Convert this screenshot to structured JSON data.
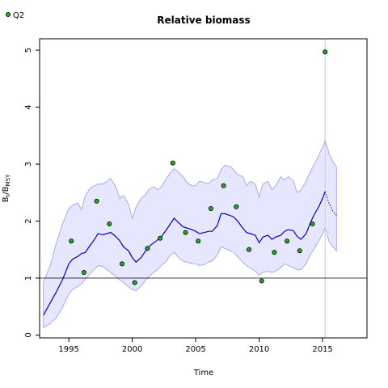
{
  "chart_data": {
    "type": "line",
    "title": "Relative biomass",
    "xlabel": "Time",
    "ylabel_main": "B",
    "ylabel_sub1": "t",
    "ylabel_sep": "/B",
    "ylabel_sub2": "MSY",
    "xlim": [
      1992.7,
      2018.5
    ],
    "ylim": [
      -0.05,
      5.2
    ],
    "x_ticks": [
      1995,
      2000,
      2005,
      2010,
      2015
    ],
    "y_ticks": [
      0,
      1,
      2,
      3,
      4,
      5
    ],
    "reference_hline": 1,
    "reference_vline": 2015.2,
    "legend": {
      "position": "top-left",
      "entries": [
        "Q2"
      ]
    },
    "colors": {
      "line": "#0000cc",
      "band_fill": "#e6e6ff",
      "band_edge": "#9a9aee",
      "points": "#22aa22",
      "vline": "#c8c8dd",
      "hline": "#000000"
    },
    "estimate": {
      "x": [
        1993.0,
        1993.5,
        1994.0,
        1994.5,
        1995.0,
        1995.3,
        1995.7,
        1996.0,
        1996.3,
        1996.7,
        1997.0,
        1997.3,
        1997.7,
        1998.0,
        1998.3,
        1998.7,
        1999.0,
        1999.3,
        1999.7,
        2000.0,
        2000.3,
        2000.7,
        2001.0,
        2001.3,
        2001.7,
        2002.0,
        2002.3,
        2002.7,
        2003.0,
        2003.3,
        2003.7,
        2004.0,
        2004.3,
        2004.7,
        2005.0,
        2005.3,
        2005.7,
        2006.0,
        2006.3,
        2006.7,
        2007.0,
        2007.3,
        2007.7,
        2008.0,
        2008.3,
        2008.7,
        2009.0,
        2009.3,
        2009.7,
        2010.0,
        2010.3,
        2010.7,
        2011.0,
        2011.3,
        2011.7,
        2012.0,
        2012.3,
        2012.7,
        2013.0,
        2013.3,
        2013.7,
        2014.0,
        2014.3,
        2014.7,
        2015.0,
        2015.2
      ],
      "y": [
        0.35,
        0.55,
        0.75,
        0.97,
        1.25,
        1.33,
        1.38,
        1.43,
        1.45,
        1.58,
        1.67,
        1.78,
        1.76,
        1.78,
        1.8,
        1.73,
        1.66,
        1.55,
        1.48,
        1.36,
        1.28,
        1.36,
        1.46,
        1.55,
        1.62,
        1.67,
        1.73,
        1.85,
        1.95,
        2.05,
        1.96,
        1.9,
        1.88,
        1.85,
        1.82,
        1.78,
        1.8,
        1.82,
        1.82,
        1.92,
        2.13,
        2.13,
        2.1,
        2.07,
        2.0,
        1.88,
        1.8,
        1.78,
        1.75,
        1.62,
        1.72,
        1.75,
        1.68,
        1.72,
        1.75,
        1.82,
        1.85,
        1.83,
        1.73,
        1.68,
        1.78,
        1.95,
        2.1,
        2.25,
        2.4,
        2.52
      ]
    },
    "forecast": {
      "x": [
        2015.2,
        2015.5,
        2015.8,
        2016.1
      ],
      "y": [
        2.52,
        2.32,
        2.18,
        2.1
      ]
    },
    "upper_band": {
      "x": [
        1993.0,
        1993.5,
        1994.0,
        1994.5,
        1995.0,
        1995.3,
        1995.7,
        1996.0,
        1996.3,
        1996.7,
        1997.0,
        1997.3,
        1997.7,
        1998.0,
        1998.3,
        1998.7,
        1999.0,
        1999.3,
        1999.7,
        2000.0,
        2000.3,
        2000.7,
        2001.0,
        2001.3,
        2001.7,
        2002.0,
        2002.3,
        2002.7,
        2003.0,
        2003.3,
        2003.7,
        2004.0,
        2004.3,
        2004.7,
        2005.0,
        2005.3,
        2005.7,
        2006.0,
        2006.3,
        2006.7,
        2007.0,
        2007.3,
        2007.7,
        2008.0,
        2008.3,
        2008.7,
        2009.0,
        2009.3,
        2009.7,
        2010.0,
        2010.3,
        2010.7,
        2011.0,
        2011.3,
        2011.7,
        2012.0,
        2012.3,
        2012.7,
        2013.0,
        2013.3,
        2013.7,
        2014.0,
        2014.3,
        2014.7,
        2015.0,
        2015.2,
        2015.5,
        2015.8,
        2016.1
      ],
      "y": [
        0.92,
        1.2,
        1.6,
        1.95,
        2.22,
        2.28,
        2.32,
        2.2,
        2.45,
        2.58,
        2.62,
        2.65,
        2.65,
        2.7,
        2.75,
        2.6,
        2.4,
        2.45,
        2.3,
        2.05,
        2.25,
        2.4,
        2.45,
        2.55,
        2.6,
        2.55,
        2.6,
        2.75,
        2.85,
        2.92,
        2.85,
        2.78,
        2.68,
        2.62,
        2.62,
        2.7,
        2.68,
        2.65,
        2.72,
        2.75,
        2.9,
        2.98,
        2.96,
        2.9,
        2.82,
        2.78,
        2.62,
        2.7,
        2.65,
        2.42,
        2.65,
        2.7,
        2.55,
        2.62,
        2.78,
        2.72,
        2.78,
        2.7,
        2.5,
        2.55,
        2.7,
        2.85,
        2.98,
        3.15,
        3.3,
        3.42,
        3.2,
        3.05,
        2.95
      ]
    },
    "lower_band": {
      "x": [
        1993.0,
        1993.5,
        1994.0,
        1994.5,
        1995.0,
        1995.3,
        1995.7,
        1996.0,
        1996.3,
        1996.7,
        1997.0,
        1997.3,
        1997.7,
        1998.0,
        1998.3,
        1998.7,
        1999.0,
        1999.3,
        1999.7,
        2000.0,
        2000.3,
        2000.7,
        2001.0,
        2001.3,
        2001.7,
        2002.0,
        2002.3,
        2002.7,
        2003.0,
        2003.3,
        2003.7,
        2004.0,
        2004.3,
        2004.7,
        2005.0,
        2005.3,
        2005.7,
        2006.0,
        2006.3,
        2006.7,
        2007.0,
        2007.3,
        2007.7,
        2008.0,
        2008.3,
        2008.7,
        2009.0,
        2009.3,
        2009.7,
        2010.0,
        2010.3,
        2010.7,
        2011.0,
        2011.3,
        2011.7,
        2012.0,
        2012.3,
        2012.7,
        2013.0,
        2013.3,
        2013.7,
        2014.0,
        2014.3,
        2014.7,
        2015.0,
        2015.2,
        2015.5,
        2015.8,
        2016.1
      ],
      "y": [
        0.13,
        0.2,
        0.3,
        0.48,
        0.72,
        0.8,
        0.85,
        0.9,
        0.98,
        1.08,
        1.15,
        1.22,
        1.2,
        1.15,
        1.1,
        1.03,
        0.97,
        0.92,
        0.85,
        0.8,
        0.78,
        0.86,
        0.95,
        1.02,
        1.1,
        1.15,
        1.22,
        1.3,
        1.4,
        1.45,
        1.35,
        1.3,
        1.28,
        1.25,
        1.25,
        1.22,
        1.24,
        1.28,
        1.3,
        1.4,
        1.55,
        1.52,
        1.48,
        1.45,
        1.38,
        1.28,
        1.22,
        1.18,
        1.12,
        1.05,
        1.1,
        1.12,
        1.1,
        1.12,
        1.18,
        1.25,
        1.22,
        1.18,
        1.15,
        1.15,
        1.25,
        1.4,
        1.5,
        1.65,
        1.78,
        1.88,
        1.65,
        1.55,
        1.48
      ]
    },
    "series": [
      {
        "name": "Q2",
        "x": [
          1995.2,
          1996.2,
          1997.2,
          1998.2,
          1999.2,
          2000.2,
          2001.2,
          2002.2,
          2003.2,
          2004.2,
          2005.2,
          2006.2,
          2007.2,
          2008.2,
          2009.2,
          2010.2,
          2011.2,
          2012.2,
          2013.2,
          2014.2,
          2015.2
        ],
        "y": [
          1.65,
          1.1,
          2.35,
          1.95,
          1.25,
          0.92,
          1.52,
          1.7,
          3.02,
          1.8,
          1.65,
          2.22,
          2.62,
          2.25,
          1.5,
          0.95,
          1.45,
          1.65,
          1.48,
          1.95,
          4.97
        ]
      }
    ]
  }
}
